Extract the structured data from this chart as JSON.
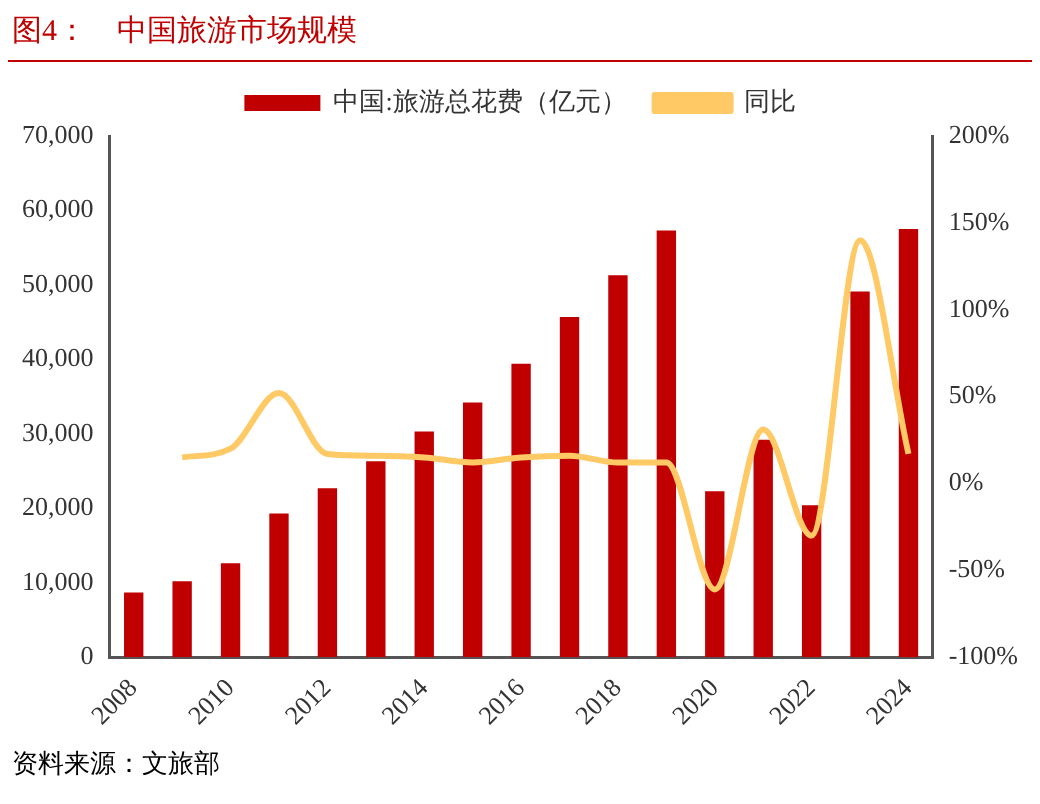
{
  "chart_data": {
    "type": "bar",
    "title": "图4：　中国旅游市场规模",
    "categories": [
      "2008",
      null,
      "2010",
      null,
      "2012",
      null,
      "2014",
      null,
      "2016",
      null,
      "2018",
      null,
      "2020",
      null,
      "2022",
      null,
      "2024"
    ],
    "series": [
      {
        "name": "中国:旅游总花费（亿元）",
        "color": "#c00000",
        "values": [
          8700,
          10200,
          12600,
          19300,
          22700,
          26300,
          30300,
          34200,
          39400,
          45700,
          51300,
          57300,
          22300,
          29200,
          20400,
          49100,
          57500
        ]
      },
      {
        "name": "同比",
        "type": "line",
        "axis": "y2",
        "color": "#ffc966",
        "values": [
          null,
          15,
          20,
          52,
          17,
          16,
          15,
          12,
          15,
          16,
          12,
          12,
          -61,
          31,
          -30,
          140,
          17
        ]
      }
    ],
    "ylim": [
      0,
      70000
    ],
    "yticks": [
      {
        "value": 0,
        "label": "0"
      },
      {
        "value": 10000,
        "label": "10,000"
      },
      {
        "value": 20000,
        "label": "20,000"
      },
      {
        "value": 30000,
        "label": "30,000"
      },
      {
        "value": 40000,
        "label": "40,000"
      },
      {
        "value": 50000,
        "label": "50,000"
      },
      {
        "value": 60000,
        "label": "60,000"
      },
      {
        "value": 70000,
        "label": "70,000"
      }
    ],
    "y2lim": [
      -100,
      200
    ],
    "y2ticks": [
      {
        "value": -100,
        "label": "-100%"
      },
      {
        "value": -50,
        "label": "-50%"
      },
      {
        "value": 0,
        "label": "0%"
      },
      {
        "value": 50,
        "label": "50%"
      },
      {
        "value": 100,
        "label": "100%"
      },
      {
        "value": 150,
        "label": "150%"
      },
      {
        "value": 200,
        "label": "200%"
      }
    ],
    "legend": "top",
    "grid": false,
    "marker": "none",
    "annotations": [
      "资料来源：文旅部"
    ]
  }
}
